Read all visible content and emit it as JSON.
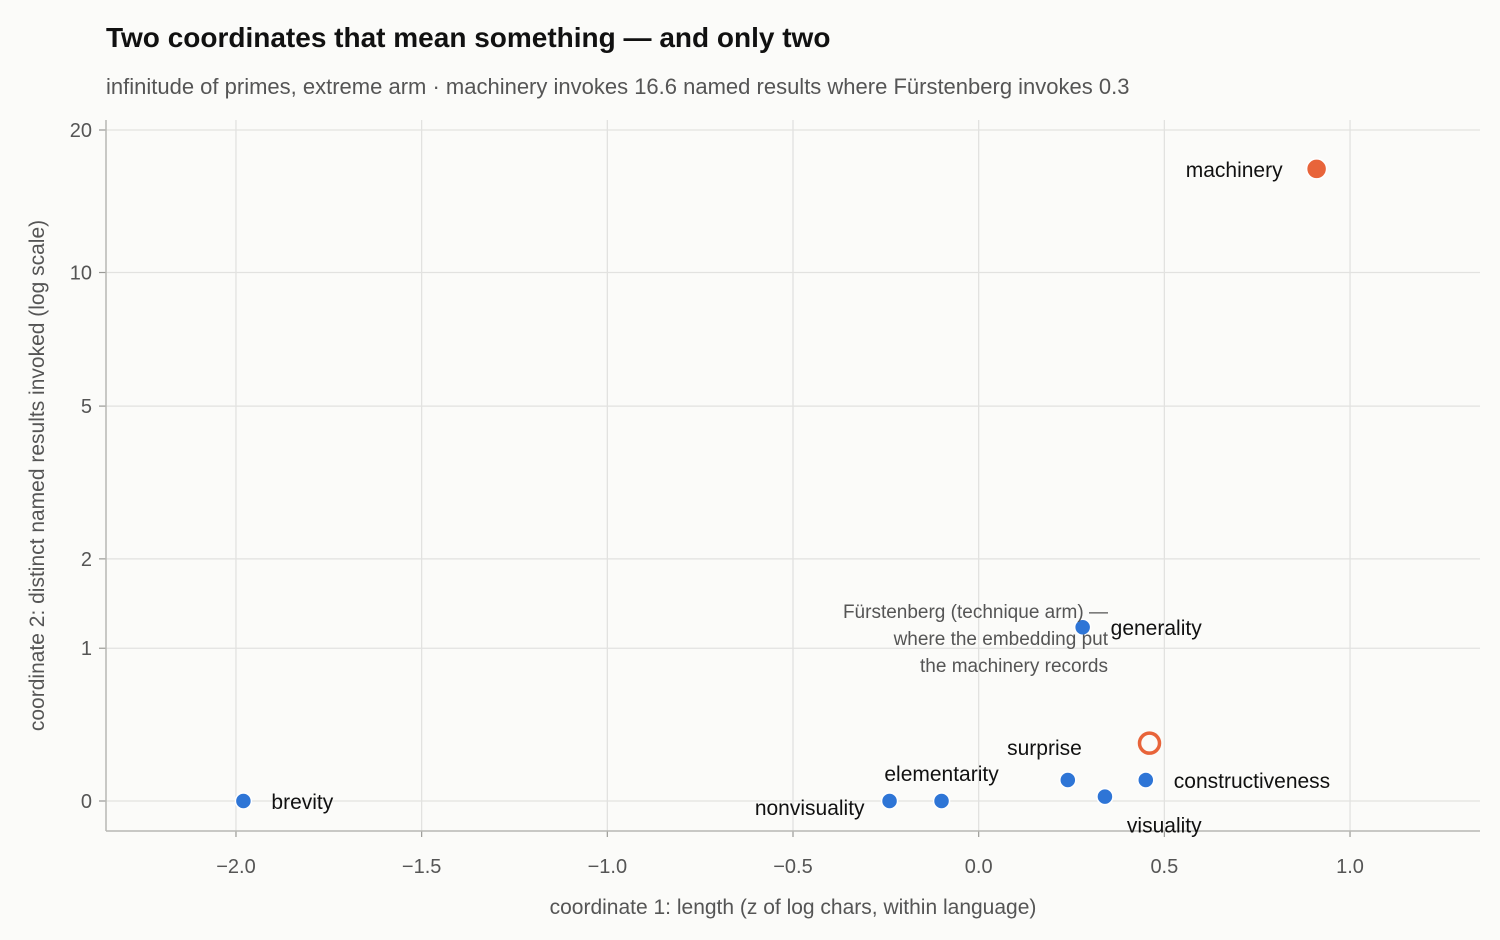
{
  "chart_data": {
    "type": "scatter",
    "title": "Two coordinates that mean something — and only two",
    "subtitle": "infinitude of primes, extreme arm · machinery invokes 16.6 named results where Fürstenberg invokes 0.3",
    "xlabel": "coordinate 1: length (z of log chars, within language)",
    "ylabel": "coordinate 2: distinct named results invoked (log scale)",
    "xlim": [
      -2.35,
      1.35
    ],
    "ylim": [
      -0.05,
      20
    ],
    "y_scale": "log1p",
    "grid": true,
    "xticks": [
      -2.0,
      -1.5,
      -1.0,
      -0.5,
      0.0,
      0.5,
      1.0
    ],
    "xtick_labels": [
      "−2.0",
      "−1.5",
      "−1.0",
      "−0.5",
      "0.0",
      "0.5",
      "1.0"
    ],
    "yticks": [
      0,
      1,
      2,
      5,
      10,
      20
    ],
    "ytick_labels": [
      "0",
      "1",
      "2",
      "5",
      "10",
      "20"
    ],
    "points": [
      {
        "label": "brevity",
        "x": -1.98,
        "y": 0.0,
        "color": "#2e75d6",
        "style": "filled",
        "label_pos": "right"
      },
      {
        "label": "nonvisuality",
        "x": -0.24,
        "y": 0.0,
        "color": "#2e75d6",
        "style": "filled",
        "label_pos": "below-left"
      },
      {
        "label": "elementarity",
        "x": -0.1,
        "y": 0.0,
        "color": "#2e75d6",
        "style": "filled",
        "label_pos": "above"
      },
      {
        "label": "surprise",
        "x": 0.24,
        "y": 0.1,
        "color": "#2e75d6",
        "style": "filled",
        "label_pos": "above-left"
      },
      {
        "label": "visuality",
        "x": 0.34,
        "y": 0.02,
        "color": "#2e75d6",
        "style": "filled",
        "label_pos": "below-right"
      },
      {
        "label": "constructiveness",
        "x": 0.45,
        "y": 0.1,
        "color": "#2e75d6",
        "style": "filled",
        "label_pos": "right"
      },
      {
        "label": "generality",
        "x": 0.28,
        "y": 1.2,
        "color": "#2e75d6",
        "style": "filled",
        "label_pos": "right"
      },
      {
        "label": "machinery",
        "x": 0.91,
        "y": 16.6,
        "color": "#e8643a",
        "style": "filled",
        "label_pos": "left"
      },
      {
        "label": "",
        "x": 0.46,
        "y": 0.3,
        "color": "#e8643a",
        "style": "hollow",
        "label_pos": "none"
      }
    ],
    "annotation": {
      "lines": [
        "Fürstenberg (technique arm) —",
        "where the embedding put",
        "the machinery records"
      ],
      "x": 0.36,
      "y": 0.85
    }
  }
}
